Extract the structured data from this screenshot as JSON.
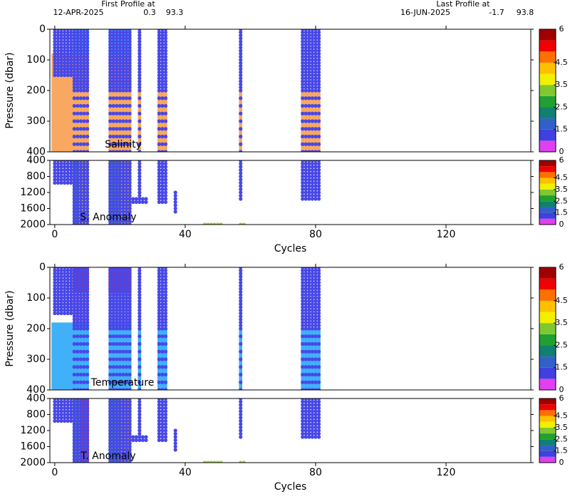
{
  "header": {
    "first_title": "First Profile at",
    "first_date": "12-APR-2025",
    "first_lat": "0.3",
    "first_lon": "93.3",
    "last_title": "Last Profile at",
    "last_date": "16-JUN-2025",
    "last_lat": "-1.7",
    "last_lon": "93.8"
  },
  "chart_data": [
    {
      "type": "scatter",
      "label": "Salinity",
      "ylabel": "Pressure (dbar)",
      "xlim": [
        -1.5,
        146
      ],
      "ylim": [
        0,
        400
      ],
      "yticks": [
        0,
        100,
        200,
        300,
        400
      ],
      "y_inverted": true,
      "point_color": "#4848e8",
      "levels": [
        0,
        10,
        20,
        30,
        40,
        50,
        60,
        70,
        80,
        90,
        100,
        110,
        120,
        130,
        140,
        150,
        160,
        170,
        180,
        190,
        200,
        225,
        250,
        275,
        300,
        325,
        350,
        375,
        400
      ],
      "profiles": {
        "cycles": [
          0,
          1,
          2,
          3,
          4,
          5,
          6,
          7,
          8,
          9,
          10,
          17,
          18,
          19,
          20,
          21,
          22,
          23,
          26,
          32,
          33,
          34,
          57,
          76,
          77,
          78,
          79,
          80,
          81
        ],
        "min_pressure": [
          0,
          0,
          0,
          0,
          0,
          0,
          0,
          0,
          0,
          0,
          0,
          0,
          0,
          0,
          0,
          0,
          0,
          0,
          0,
          0,
          0,
          0,
          0,
          0,
          0,
          0,
          0,
          0,
          0
        ],
        "max_pressure": [
          150,
          150,
          150,
          150,
          150,
          150,
          400,
          400,
          400,
          400,
          400,
          400,
          400,
          400,
          400,
          400,
          400,
          400,
          400,
          400,
          400,
          400,
          400,
          400,
          400,
          400,
          400,
          400,
          400
        ]
      },
      "fields": [
        {
          "x": [
            5.5,
            10.5
          ],
          "p": [
            0,
            80
          ],
          "color": "#40f0f8"
        },
        {
          "x": [
            16.5,
            23.5
          ],
          "p": [
            0,
            85
          ],
          "color": "#40f0f8"
        },
        {
          "x": [
            -1,
            10.5
          ],
          "p": [
            80,
            400
          ],
          "color": "#f8a860"
        },
        {
          "x": [
            16.5,
            23.5
          ],
          "p": [
            85,
            400
          ],
          "color": "#f8a860"
        },
        {
          "x": [
            25.5,
            26.5
          ],
          "p": [
            200,
            400
          ],
          "color": "#f8a860"
        },
        {
          "x": [
            31.5,
            34.5
          ],
          "p": [
            200,
            400
          ],
          "color": "#f8a860"
        },
        {
          "x": [
            56.5,
            57.5
          ],
          "p": [
            200,
            400
          ],
          "color": "#f8a860"
        },
        {
          "x": [
            75.5,
            81.5
          ],
          "p": [
            200,
            400
          ],
          "color": "#f8a860"
        }
      ],
      "colorbar": {
        "levels": [
          0,
          1,
          1.5,
          2,
          2.5,
          3,
          3.5,
          4,
          4.5,
          5,
          5.5,
          6
        ],
        "colors": [
          "#e040f0",
          "#4040e0",
          "#3060c8",
          "#108070",
          "#20a030",
          "#80c830",
          "#f0f000",
          "#ffc000",
          "#ff7000",
          "#f00000",
          "#a00000"
        ],
        "ticks": [
          0,
          1.5,
          2.5,
          3.5,
          4.5,
          6
        ]
      }
    },
    {
      "type": "scatter",
      "label": "S. Anomaly",
      "xlim": [
        -1.5,
        146
      ],
      "ylim": [
        400,
        2000
      ],
      "yticks": [
        400,
        800,
        1200,
        1600,
        2000
      ],
      "y_inverted": true,
      "point_color": "#4848e8",
      "xticks": [
        0,
        40,
        80,
        120
      ],
      "xlabel": "Cycles",
      "levels": [
        400,
        480,
        560,
        640,
        720,
        800,
        880,
        960,
        1040,
        1120,
        1200,
        1280,
        1360,
        1440,
        1520,
        1600,
        1680,
        1760,
        1840,
        1920,
        2000
      ],
      "profiles": {
        "cycles": [
          0,
          1,
          2,
          3,
          4,
          5,
          6,
          7,
          8,
          9,
          10,
          17,
          18,
          19,
          20,
          21,
          22,
          23,
          24,
          25,
          26,
          27,
          28,
          32,
          33,
          34,
          37,
          57,
          76,
          77,
          78,
          79,
          80,
          81
        ],
        "min_pressure": [
          400,
          400,
          400,
          400,
          400,
          400,
          400,
          400,
          400,
          400,
          400,
          400,
          400,
          400,
          400,
          400,
          400,
          400,
          1300,
          1300,
          400,
          1300,
          1300,
          400,
          400,
          400,
          1200,
          400,
          400,
          400,
          400,
          400,
          400,
          400
        ],
        "max_pressure": [
          1000,
          1000,
          1000,
          1000,
          1000,
          1000,
          2000,
          2000,
          2000,
          2000,
          2000,
          2000,
          2000,
          2000,
          2000,
          2000,
          2000,
          2000,
          1450,
          1450,
          1450,
          1450,
          1450,
          1500,
          1500,
          1500,
          1700,
          1400,
          1400,
          1400,
          1400,
          1400,
          1400,
          1400
        ]
      },
      "extra_points": {
        "x": [
          46,
          47,
          48,
          49,
          50,
          51,
          57,
          58
        ],
        "y": [
          2000,
          2000,
          2000,
          2000,
          2000,
          2000,
          2000,
          2000
        ],
        "color": "#a0d030"
      },
      "fields": [
        {
          "x": [
            5.5,
            7.5
          ],
          "p": [
            400,
            2000
          ],
          "color": "#30b040"
        },
        {
          "x": [
            7.5,
            10.5
          ],
          "p": [
            400,
            2000
          ],
          "color": "#f0e020"
        },
        {
          "x": [
            16.5,
            20
          ],
          "p": [
            400,
            2000
          ],
          "color": "#40c040"
        },
        {
          "x": [
            20,
            23.5
          ],
          "p": [
            400,
            2000
          ],
          "color": "#f0d020"
        }
      ],
      "colorbar": {
        "levels": [
          0,
          1,
          1.5,
          2,
          2.5,
          3,
          3.5,
          4,
          4.5,
          5,
          5.5,
          6
        ],
        "colors": [
          "#e040f0",
          "#4040e0",
          "#3060c8",
          "#108070",
          "#20a030",
          "#80c830",
          "#f0f000",
          "#ffc000",
          "#ff7000",
          "#f00000",
          "#a00000"
        ],
        "ticks": [
          0,
          1.5,
          2.5,
          3.5,
          4.5,
          6
        ]
      }
    },
    {
      "type": "scatter",
      "label": "Temperature",
      "ylabel": "Pressure (dbar)",
      "xlim": [
        -1.5,
        146
      ],
      "ylim": [
        0,
        400
      ],
      "yticks": [
        0,
        100,
        200,
        300,
        400
      ],
      "y_inverted": true,
      "point_color": "#4848e8",
      "levels": [
        0,
        10,
        20,
        30,
        40,
        50,
        60,
        70,
        80,
        90,
        100,
        110,
        120,
        130,
        140,
        150,
        160,
        170,
        180,
        190,
        200,
        225,
        250,
        275,
        300,
        325,
        350,
        375,
        400
      ],
      "profiles": {
        "cycles": [
          0,
          1,
          2,
          3,
          4,
          5,
          6,
          7,
          8,
          9,
          10,
          17,
          18,
          19,
          20,
          21,
          22,
          23,
          26,
          32,
          33,
          34,
          57,
          76,
          77,
          78,
          79,
          80,
          81
        ],
        "min_pressure": [
          0,
          0,
          0,
          0,
          0,
          0,
          0,
          0,
          0,
          0,
          0,
          0,
          0,
          0,
          0,
          0,
          0,
          0,
          0,
          0,
          0,
          0,
          0,
          0,
          0,
          0,
          0,
          0,
          0
        ],
        "max_pressure": [
          150,
          150,
          150,
          150,
          150,
          150,
          400,
          400,
          400,
          400,
          400,
          400,
          400,
          400,
          400,
          400,
          400,
          400,
          400,
          400,
          400,
          400,
          400,
          400,
          400,
          400,
          400,
          400,
          400
        ]
      },
      "fields": [
        {
          "x": [
            5.5,
            10.5
          ],
          "p": [
            0,
            80
          ],
          "color": "#f02040"
        },
        {
          "x": [
            16.5,
            23.5
          ],
          "p": [
            0,
            85
          ],
          "color": "#f02040"
        },
        {
          "x": [
            5.5,
            10.5
          ],
          "p": [
            80,
            180
          ],
          "color": "#f8a8d8"
        },
        {
          "x": [
            16.5,
            23.5
          ],
          "p": [
            85,
            180
          ],
          "color": "#a8c8f0"
        },
        {
          "x": [
            -1,
            10.5
          ],
          "p": [
            180,
            400
          ],
          "color": "#40b0f8"
        },
        {
          "x": [
            16.5,
            23.5
          ],
          "p": [
            180,
            400
          ],
          "color": "#40b0f8"
        },
        {
          "x": [
            25.5,
            26.5
          ],
          "p": [
            200,
            400
          ],
          "color": "#40b0f8"
        },
        {
          "x": [
            31.5,
            34.5
          ],
          "p": [
            200,
            400
          ],
          "color": "#40b0f8"
        },
        {
          "x": [
            56.5,
            57.5
          ],
          "p": [
            200,
            400
          ],
          "color": "#40b0f8"
        },
        {
          "x": [
            75.5,
            81.5
          ],
          "p": [
            200,
            400
          ],
          "color": "#40b0f8"
        }
      ],
      "colorbar": {
        "levels": [
          0,
          1,
          1.5,
          2,
          2.5,
          3,
          3.5,
          4,
          4.5,
          5,
          5.5,
          6
        ],
        "colors": [
          "#e040f0",
          "#4040e0",
          "#3060c8",
          "#108070",
          "#20a030",
          "#80c830",
          "#f0f000",
          "#ffc000",
          "#ff7000",
          "#f00000",
          "#a00000"
        ],
        "ticks": [
          0,
          1.5,
          2.5,
          3.5,
          4.5,
          6
        ]
      }
    },
    {
      "type": "scatter",
      "label": "T. Anomaly",
      "xlim": [
        -1.5,
        146
      ],
      "ylim": [
        400,
        2000
      ],
      "yticks": [
        400,
        800,
        1200,
        1600,
        2000
      ],
      "y_inverted": true,
      "point_color": "#4848e8",
      "xticks": [
        0,
        40,
        80,
        120
      ],
      "xlabel": "Cycles",
      "levels": [
        400,
        480,
        560,
        640,
        720,
        800,
        880,
        960,
        1040,
        1120,
        1200,
        1280,
        1360,
        1440,
        1520,
        1600,
        1680,
        1760,
        1840,
        1920,
        2000
      ],
      "profiles": {
        "cycles": [
          0,
          1,
          2,
          3,
          4,
          5,
          6,
          7,
          8,
          9,
          10,
          17,
          18,
          19,
          20,
          21,
          22,
          23,
          24,
          25,
          26,
          27,
          28,
          32,
          33,
          34,
          37,
          57,
          76,
          77,
          78,
          79,
          80,
          81
        ],
        "min_pressure": [
          400,
          400,
          400,
          400,
          400,
          400,
          400,
          400,
          400,
          400,
          400,
          400,
          400,
          400,
          400,
          400,
          400,
          400,
          1300,
          1300,
          400,
          1300,
          1300,
          400,
          400,
          400,
          1200,
          400,
          400,
          400,
          400,
          400,
          400,
          400
        ],
        "max_pressure": [
          1000,
          1000,
          1000,
          1000,
          1000,
          1000,
          2000,
          2000,
          2000,
          2000,
          2000,
          2000,
          2000,
          2000,
          2000,
          2000,
          2000,
          2000,
          1450,
          1450,
          1450,
          1450,
          1450,
          1500,
          1500,
          1500,
          1700,
          1400,
          1400,
          1400,
          1400,
          1400,
          1400,
          1400
        ]
      },
      "extra_points": {
        "x": [
          46,
          47,
          48,
          49,
          50,
          51,
          57,
          58
        ],
        "y": [
          2000,
          2000,
          2000,
          2000,
          2000,
          2000,
          2000,
          2000
        ],
        "color": "#a0d030"
      },
      "fields": [
        {
          "x": [
            5.5,
            8
          ],
          "p": [
            400,
            2000
          ],
          "color": "#40c040"
        },
        {
          "x": [
            8,
            10.5
          ],
          "p": [
            400,
            2000
          ],
          "color": "#f03020"
        },
        {
          "x": [
            16.5,
            20
          ],
          "p": [
            400,
            2000
          ],
          "color": "#40c040"
        },
        {
          "x": [
            20,
            23.5
          ],
          "p": [
            400,
            2000
          ],
          "color": "#f0c020"
        }
      ],
      "colorbar": {
        "levels": [
          0,
          1,
          1.5,
          2,
          2.5,
          3,
          3.5,
          4,
          4.5,
          5,
          5.5,
          6
        ],
        "colors": [
          "#e040f0",
          "#4040e0",
          "#3060c8",
          "#108070",
          "#20a030",
          "#80c830",
          "#f0f000",
          "#ffc000",
          "#ff7000",
          "#f00000",
          "#a00000"
        ],
        "ticks": [
          0,
          1.5,
          2.5,
          3.5,
          4.5,
          6
        ]
      }
    }
  ]
}
